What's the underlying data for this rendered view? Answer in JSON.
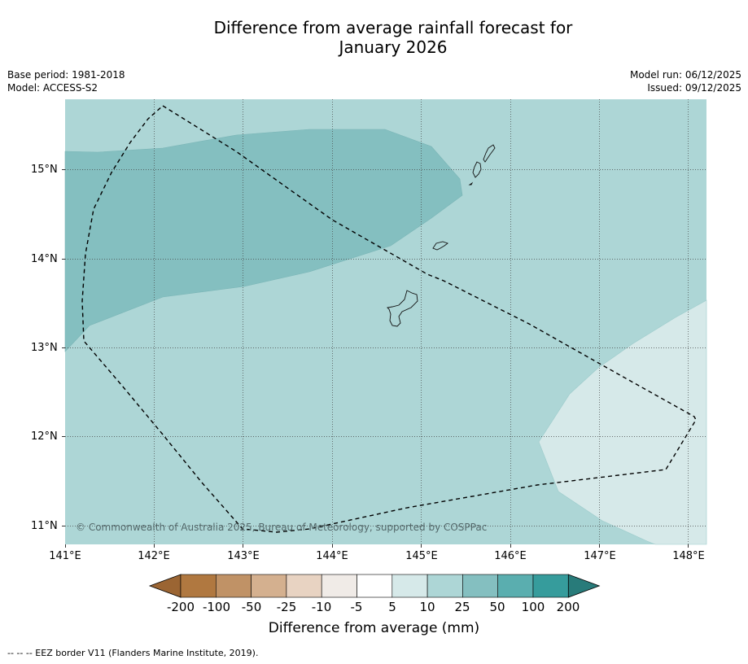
{
  "header": {
    "title_line1": "Difference from average rainfall forecast for",
    "title_line2": "January 2026",
    "base_period": "Base period: 1981-2018",
    "model": "Model: ACCESS-S2",
    "model_run": "Model run: 06/12/2025",
    "issued": "Issued: 09/12/2025"
  },
  "map": {
    "lat_labels": [
      "15°N",
      "14°N",
      "13°N",
      "12°N",
      "11°N"
    ],
    "lon_labels": [
      "141°E",
      "142°E",
      "143°E",
      "144°E",
      "145°E",
      "146°E",
      "147°E",
      "148°E"
    ],
    "copyright": "© Commonwealth of Australia 2025, Bureau of Meteorology, supported by COSPPac",
    "regions": [
      {
        "category": "25 to 50",
        "color": "#84bfc0"
      },
      {
        "category": "10 to 25",
        "color": "#add6d6"
      },
      {
        "category": "5 to 10",
        "color": "#d6e9e9"
      }
    ]
  },
  "colorbar": {
    "title": "Difference from average (mm)",
    "ticks": [
      "-200",
      "-100",
      "-50",
      "-25",
      "-10",
      "-5",
      "5",
      "10",
      "25",
      "50",
      "100",
      "200"
    ],
    "colors": [
      "#9b6533",
      "#b07840",
      "#c09266",
      "#d4b08f",
      "#e8d3c2",
      "#f0ebe7",
      "#ffffff",
      "#d6e9e9",
      "#add6d6",
      "#84bfc0",
      "#5aaeaf",
      "#369c9c",
      "#287b7a"
    ]
  },
  "footer": {
    "legend": "--  --  -- EEZ border V11 (Flanders Marine Institute, 2019)."
  }
}
